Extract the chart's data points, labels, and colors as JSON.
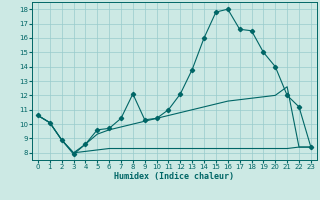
{
  "xlabel": "Humidex (Indice chaleur)",
  "bg_color": "#cce9e4",
  "line_color": "#006666",
  "grid_color": "#99cccc",
  "xlim": [
    -0.5,
    23.5
  ],
  "ylim": [
    7.5,
    18.5
  ],
  "xticks": [
    0,
    1,
    2,
    3,
    4,
    5,
    6,
    7,
    8,
    9,
    10,
    11,
    12,
    13,
    14,
    15,
    16,
    17,
    18,
    19,
    20,
    21,
    22,
    23
  ],
  "yticks": [
    8,
    9,
    10,
    11,
    12,
    13,
    14,
    15,
    16,
    17,
    18
  ],
  "line1_x": [
    0,
    1,
    2,
    3,
    4,
    5,
    6,
    7,
    8,
    9,
    10,
    11,
    12,
    13,
    14,
    15,
    16,
    17,
    18,
    19,
    20,
    21,
    22,
    23
  ],
  "line1_y": [
    10.6,
    10.1,
    8.9,
    7.9,
    8.6,
    9.6,
    9.7,
    10.4,
    12.1,
    10.3,
    10.4,
    11.0,
    12.1,
    13.8,
    16.0,
    17.8,
    18.0,
    16.6,
    16.5,
    15.0,
    14.0,
    12.0,
    11.2,
    8.4
  ],
  "line2_x": [
    0,
    1,
    2,
    3,
    4,
    5,
    6,
    7,
    8,
    9,
    10,
    11,
    12,
    13,
    14,
    15,
    16,
    17,
    18,
    19,
    20,
    21,
    22,
    23
  ],
  "line2_y": [
    10.6,
    10.1,
    8.9,
    8.0,
    8.6,
    9.3,
    9.6,
    9.8,
    10.0,
    10.2,
    10.4,
    10.6,
    10.8,
    11.0,
    11.2,
    11.4,
    11.6,
    11.7,
    11.8,
    11.9,
    12.0,
    12.6,
    8.4,
    8.4
  ],
  "line3_x": [
    0,
    1,
    2,
    3,
    4,
    5,
    6,
    7,
    8,
    9,
    10,
    11,
    12,
    13,
    14,
    15,
    16,
    17,
    18,
    19,
    20,
    21,
    22,
    23
  ],
  "line3_y": [
    10.6,
    10.1,
    8.9,
    8.0,
    8.1,
    8.2,
    8.3,
    8.3,
    8.3,
    8.3,
    8.3,
    8.3,
    8.3,
    8.3,
    8.3,
    8.3,
    8.3,
    8.3,
    8.3,
    8.3,
    8.3,
    8.3,
    8.4,
    8.4
  ]
}
